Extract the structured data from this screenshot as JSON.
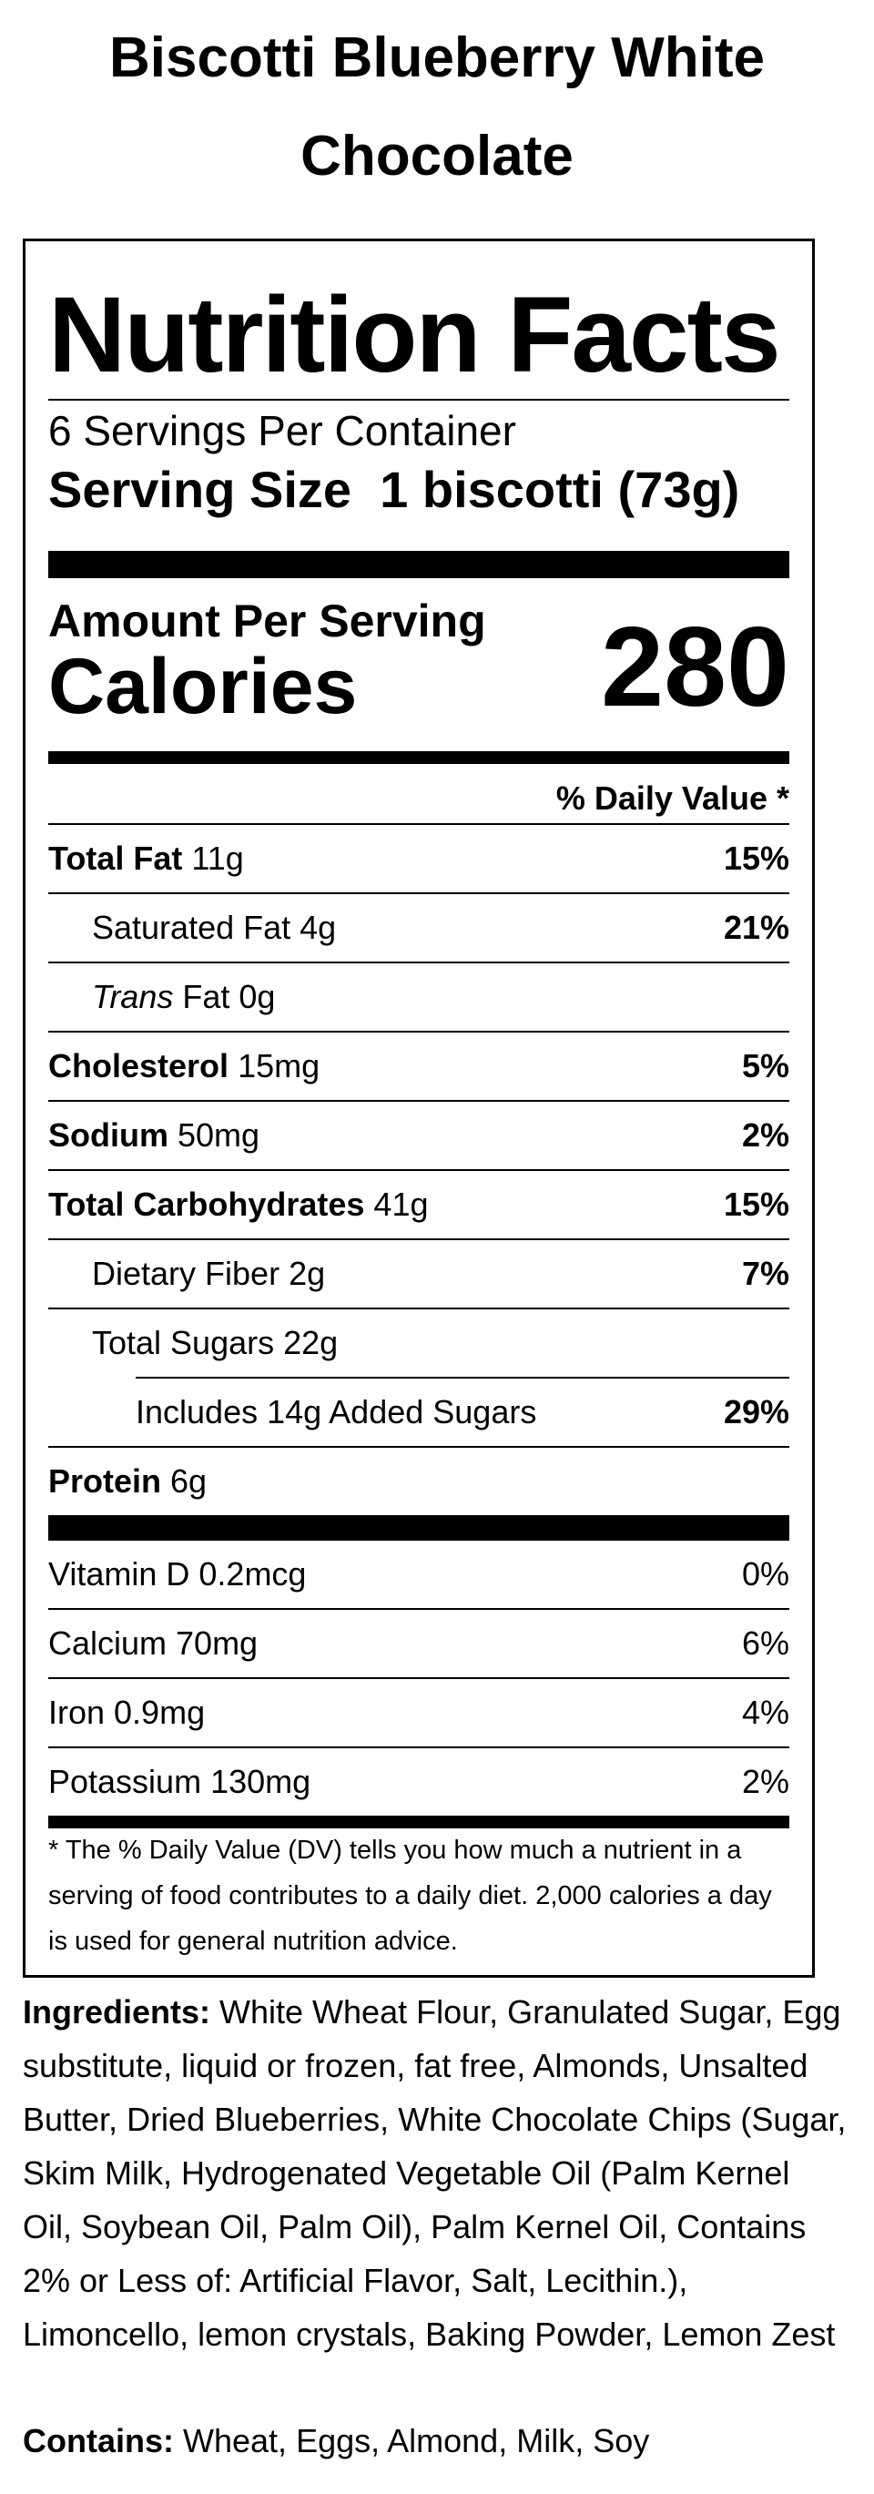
{
  "product_name": "Biscotti Blueberry White Chocolate",
  "label": {
    "title": "Nutrition Facts",
    "servings_per_container": "6 Servings Per Container",
    "serving_size_label": "Serving Size",
    "serving_size_value": "1 biscotti (73g)",
    "amount_per_serving": "Amount Per Serving",
    "calories_label": "Calories",
    "calories_value": "280",
    "daily_value_header": "% Daily Value *",
    "nutrients": [
      {
        "name": "Total Fat",
        "amount": "11g",
        "dv": "15%"
      },
      {
        "name": "Saturated Fat",
        "amount": "4g",
        "dv": "21%"
      },
      {
        "name_italic": "Trans",
        "name": "Fat",
        "amount": "0g",
        "dv": ""
      },
      {
        "name": "Cholesterol",
        "amount": "15mg",
        "dv": "5%"
      },
      {
        "name": "Sodium",
        "amount": "50mg",
        "dv": "2%"
      },
      {
        "name": "Total Carbohydrates",
        "amount": "41g",
        "dv": "15%"
      },
      {
        "name": "Dietary Fiber",
        "amount": "2g",
        "dv": "7%"
      },
      {
        "name": "Total Sugars",
        "amount": "22g",
        "dv": ""
      },
      {
        "text": "Includes 14g Added Sugars",
        "dv": "29%"
      },
      {
        "name": "Protein",
        "amount": "6g",
        "dv": ""
      }
    ],
    "vitamins": [
      {
        "text": "Vitamin D 0.2mcg",
        "dv": "0%"
      },
      {
        "text": "Calcium 70mg",
        "dv": "6%"
      },
      {
        "text": "Iron 0.9mg",
        "dv": "4%"
      },
      {
        "text": "Potassium 130mg",
        "dv": "2%"
      }
    ],
    "footnote": "* The % Daily Value (DV) tells you how much a nutrient in a serving of food contributes to a daily diet. 2,000 calories a day is used for general nutrition advice."
  },
  "ingredients": {
    "label": "Ingredients:",
    "text": "White Wheat Flour, Granulated Sugar, Egg substitute, liquid or frozen, fat free, Almonds, Unsalted Butter, Dried Blueberries, White Chocolate Chips (Sugar, Skim Milk, Hydrogenated Vegetable Oil (Palm Kernel Oil, Soybean Oil, Palm Oil), Palm Kernel Oil, Contains 2% or Less of: Artificial Flavor, Salt, Lecithin.), Limoncello, lemon crystals, Baking Powder, Lemon Zest"
  },
  "contains": {
    "label": "Contains:",
    "text": "Wheat, Eggs, Almond, Milk, Soy"
  }
}
